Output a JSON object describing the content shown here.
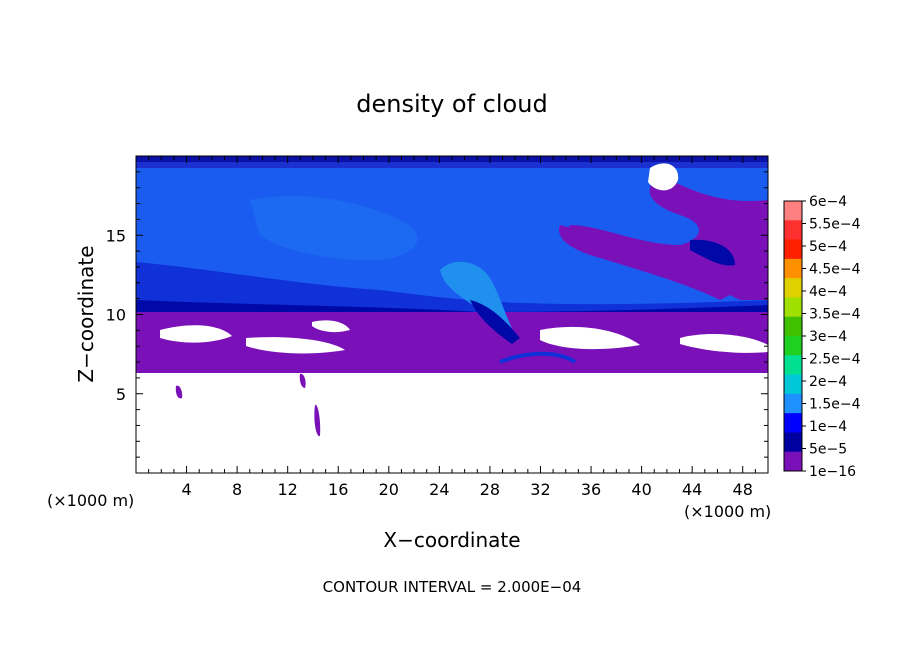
{
  "chart_data": {
    "type": "heatmap",
    "title": "density of cloud",
    "xlabel": "X−coordinate",
    "ylabel": "Z−coordinate",
    "x_units_left": "(×1000 m)",
    "x_units_right": "(×1000 m)",
    "x_ticks": [
      4,
      8,
      12,
      16,
      20,
      24,
      28,
      32,
      36,
      40,
      44,
      48
    ],
    "x_tick_labels": [
      "4",
      "8",
      "12",
      "16",
      "20",
      "24",
      "28",
      "32",
      "36",
      "40",
      "44",
      "48"
    ],
    "y_ticks": [
      5,
      10,
      15
    ],
    "y_tick_labels": [
      "5",
      "10",
      "15"
    ],
    "xlim": [
      0,
      50
    ],
    "ylim": [
      0,
      20
    ],
    "footer": "CONTOUR INTERVAL = 2.000E−04",
    "colorbar": {
      "labels": [
        "6e−4",
        "5.5e−4",
        "5e−4",
        "4.5e−4",
        "4e−4",
        "3.5e−4",
        "3e−4",
        "2.5e−4",
        "2e−4",
        "1.5e−4",
        "1e−4",
        "5e−5",
        "1e−16"
      ],
      "colors": [
        "#ff8080",
        "#ff3030",
        "#ff2000",
        "#ff9000",
        "#e0d000",
        "#a0e000",
        "#40c000",
        "#20d020",
        "#00e090",
        "#00c8d8",
        "#1e90ff",
        "#0000ff",
        "#0000a0",
        "#7a10b8"
      ]
    }
  }
}
